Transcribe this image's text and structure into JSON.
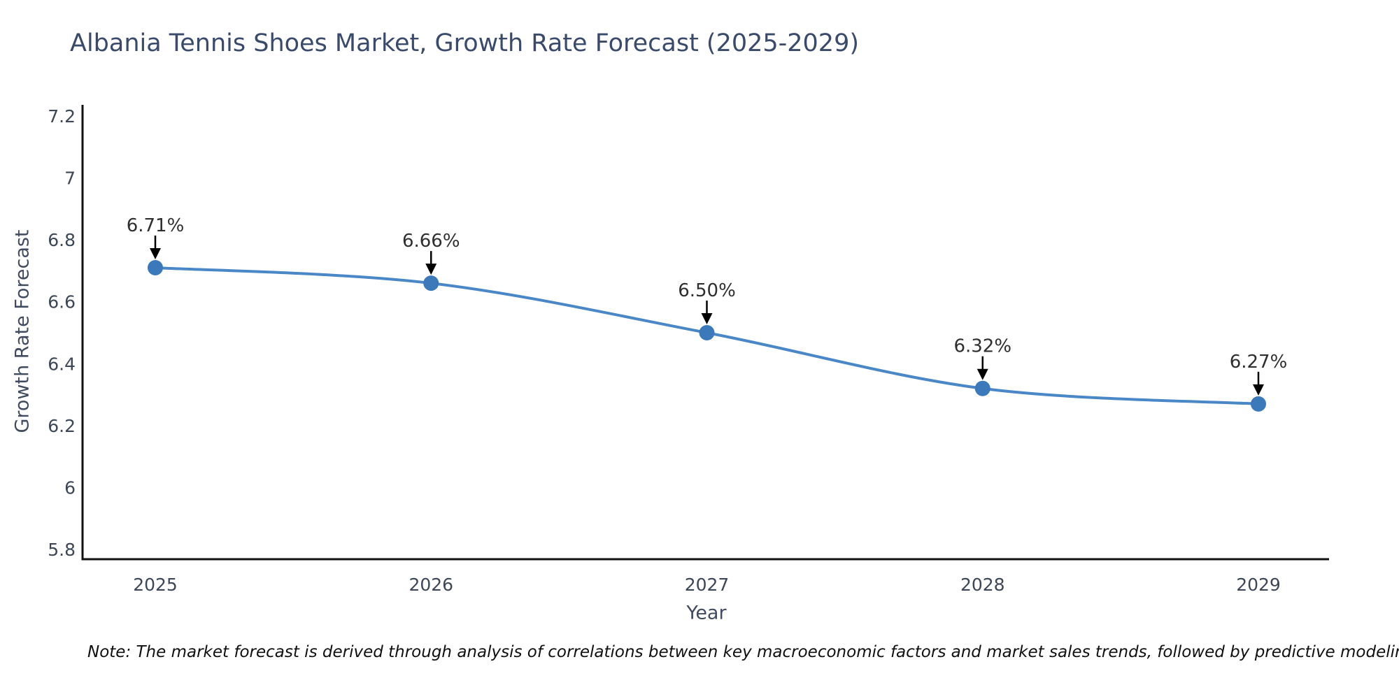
{
  "chart": {
    "title": "Albania Tennis Shoes Market, Growth Rate Forecast (2025-2029)",
    "xlabel": "Year",
    "ylabel": "Growth Rate Forecast",
    "note": "Note: The market forecast is derived through analysis of correlations between key macroeconomic factors and market sales trends, followed by predictive modeling to project future sales"
  },
  "chart_data": {
    "type": "line",
    "title": "Albania Tennis Shoes Market, Growth Rate Forecast (2025-2029)",
    "xlabel": "Year",
    "ylabel": "Growth Rate Forecast",
    "x": [
      2025,
      2026,
      2027,
      2028,
      2029
    ],
    "x_tick_labels": [
      "2025",
      "2026",
      "2027",
      "2028",
      "2029"
    ],
    "series": [
      {
        "name": "Growth Rate Forecast",
        "values": [
          6.71,
          6.66,
          6.5,
          6.32,
          6.27
        ]
      }
    ],
    "point_labels": [
      "6.71%",
      "6.66%",
      "6.50%",
      "6.32%",
      "6.27%"
    ],
    "ylim": [
      5.8,
      7.2
    ],
    "ytick_values": [
      7.2,
      7.0,
      6.8,
      6.6,
      6.4,
      6.2,
      6.0,
      5.8
    ],
    "ytick_labels": [
      "7.2",
      "7",
      "6.8",
      "6.6",
      "6.4",
      "6.2",
      "6",
      "5.8"
    ],
    "grid": false,
    "legend": "none",
    "line_smoothing": true,
    "colors": {
      "line": "#4a87c6",
      "marker": "#3b79bb",
      "axis": "#111111",
      "tick_text": "#3d4757",
      "point_label_text": "#2e2e2e",
      "arrow": "#000000"
    }
  }
}
